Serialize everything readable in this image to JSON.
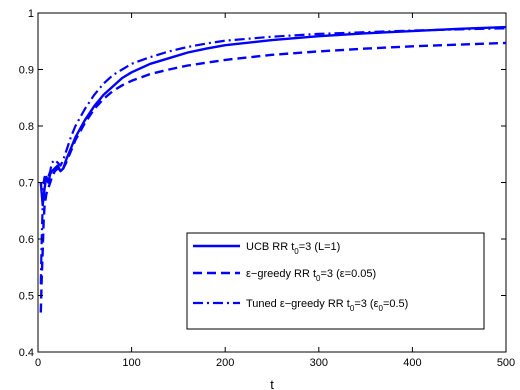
{
  "chart_data": {
    "type": "line",
    "xlabel": "t",
    "ylabel": "",
    "xlim": [
      0,
      500
    ],
    "ylim": [
      0.4,
      1.0
    ],
    "xticks": [
      "0",
      "100",
      "200",
      "300",
      "400",
      "500"
    ],
    "yticks": [
      "0.4",
      "0.5",
      "0.6",
      "0.7",
      "0.8",
      "0.9",
      "1"
    ],
    "legend_position": "bottom-right",
    "grid": false,
    "series": [
      {
        "name": "UCB RR t0=3 (L=1)",
        "legend": {
          "pre": "UCB RR t",
          "sub1": "0",
          "mid": "=3 (L=1)",
          "sub2": "",
          "post": ""
        },
        "style": "solid",
        "color": "#0000ff",
        "x": [
          3,
          5,
          7,
          9,
          11,
          13,
          15,
          18,
          21,
          24,
          27,
          30,
          35,
          40,
          45,
          50,
          60,
          70,
          80,
          90,
          100,
          120,
          140,
          160,
          180,
          200,
          250,
          300,
          350,
          400,
          450,
          500
        ],
        "y": [
          0.7,
          0.66,
          0.69,
          0.71,
          0.7,
          0.715,
          0.72,
          0.725,
          0.73,
          0.72,
          0.725,
          0.74,
          0.76,
          0.78,
          0.795,
          0.81,
          0.835,
          0.855,
          0.87,
          0.885,
          0.895,
          0.91,
          0.92,
          0.93,
          0.937,
          0.943,
          0.952,
          0.959,
          0.964,
          0.968,
          0.972,
          0.975
        ]
      },
      {
        "name": "ε-greedy RR t0=3 (ε=0.05)",
        "legend": {
          "pre": "ε−greedy RR t",
          "sub1": "0",
          "mid": "=3 (ε=0.05)",
          "sub2": "",
          "post": ""
        },
        "style": "dashed",
        "color": "#0000ff",
        "x": [
          3,
          4,
          5,
          6,
          7,
          9,
          11,
          13,
          15,
          18,
          21,
          24,
          27,
          30,
          35,
          40,
          45,
          50,
          60,
          70,
          80,
          90,
          100,
          120,
          140,
          160,
          180,
          200,
          250,
          300,
          350,
          400,
          450,
          500
        ],
        "y": [
          0.47,
          0.53,
          0.58,
          0.63,
          0.66,
          0.68,
          0.69,
          0.7,
          0.71,
          0.72,
          0.725,
          0.72,
          0.725,
          0.735,
          0.755,
          0.775,
          0.79,
          0.805,
          0.83,
          0.848,
          0.862,
          0.872,
          0.88,
          0.892,
          0.9,
          0.907,
          0.912,
          0.917,
          0.926,
          0.932,
          0.937,
          0.941,
          0.944,
          0.947
        ]
      },
      {
        "name": "Tuned ε-greedy RR t0=3 (ε0=0.5)",
        "legend": {
          "pre": "Tuned ε−greedy RR t",
          "sub1": "0",
          "mid": "=3 (ε",
          "sub2": "0",
          "post": "=0.5)"
        },
        "style": "dashdot",
        "color": "#0000ff",
        "x": [
          3,
          4,
          5,
          6,
          7,
          9,
          11,
          13,
          15,
          18,
          21,
          24,
          27,
          30,
          35,
          40,
          45,
          50,
          60,
          70,
          80,
          90,
          100,
          120,
          140,
          160,
          180,
          200,
          250,
          300,
          350,
          400,
          450,
          500
        ],
        "y": [
          0.52,
          0.6,
          0.66,
          0.7,
          0.71,
          0.7,
          0.71,
          0.72,
          0.735,
          0.74,
          0.735,
          0.73,
          0.74,
          0.755,
          0.78,
          0.8,
          0.815,
          0.83,
          0.855,
          0.875,
          0.89,
          0.9,
          0.91,
          0.922,
          0.932,
          0.94,
          0.946,
          0.951,
          0.958,
          0.963,
          0.966,
          0.969,
          0.971,
          0.973
        ]
      }
    ]
  }
}
